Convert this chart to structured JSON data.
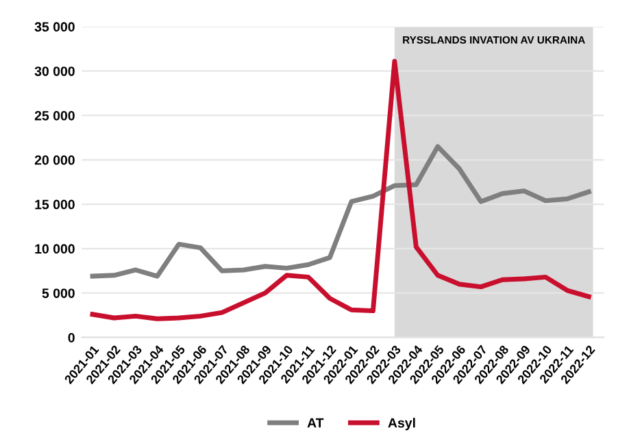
{
  "chart_data": {
    "type": "line",
    "categories": [
      "2021-01",
      "2021-02",
      "2021-03",
      "2021-04",
      "2021-05",
      "2021-06",
      "2021-07",
      "2021-08",
      "2021-09",
      "2021-10",
      "2021-11",
      "2021-12",
      "2022-01",
      "2022-02",
      "2022-03",
      "2022-04",
      "2022-05",
      "2022-06",
      "2022-07",
      "2022-08",
      "2022-09",
      "2022-10",
      "2022-11",
      "2022-12"
    ],
    "series": [
      {
        "name": "AT",
        "color": "#7f7f7f",
        "values": [
          6900,
          7000,
          7600,
          6900,
          10500,
          10100,
          7500,
          7600,
          8000,
          7800,
          8200,
          9000,
          15300,
          15900,
          17100,
          17200,
          21500,
          19000,
          15300,
          16200,
          16500,
          15400,
          15600,
          16400
        ]
      },
      {
        "name": "Asyl",
        "color": "#c8102e",
        "values": [
          2600,
          2200,
          2400,
          2100,
          2200,
          2400,
          2800,
          3900,
          5000,
          7000,
          6800,
          4400,
          3100,
          3000,
          31100,
          10200,
          7000,
          6000,
          5700,
          6500,
          6600,
          6800,
          5300,
          4600
        ]
      }
    ],
    "ylim": [
      0,
      35000
    ],
    "yticks": [
      {
        "value": 0,
        "label": "0"
      },
      {
        "value": 5000,
        "label": "5 000"
      },
      {
        "value": 10000,
        "label": "10 000"
      },
      {
        "value": 15000,
        "label": "15 000"
      },
      {
        "value": 20000,
        "label": "20 000"
      },
      {
        "value": 25000,
        "label": "25 000"
      },
      {
        "value": 30000,
        "label": "30 000"
      },
      {
        "value": 35000,
        "label": "35 000"
      }
    ],
    "grid": "y",
    "legend": "bottom",
    "marker": "none",
    "line_style": "solid",
    "bands": [
      {
        "axis": "x",
        "from": "2022-03",
        "to": "2022-12",
        "label": "RYSSLANDS INVATION AV UKRAINA",
        "color": "#d9d9d9"
      }
    ]
  }
}
